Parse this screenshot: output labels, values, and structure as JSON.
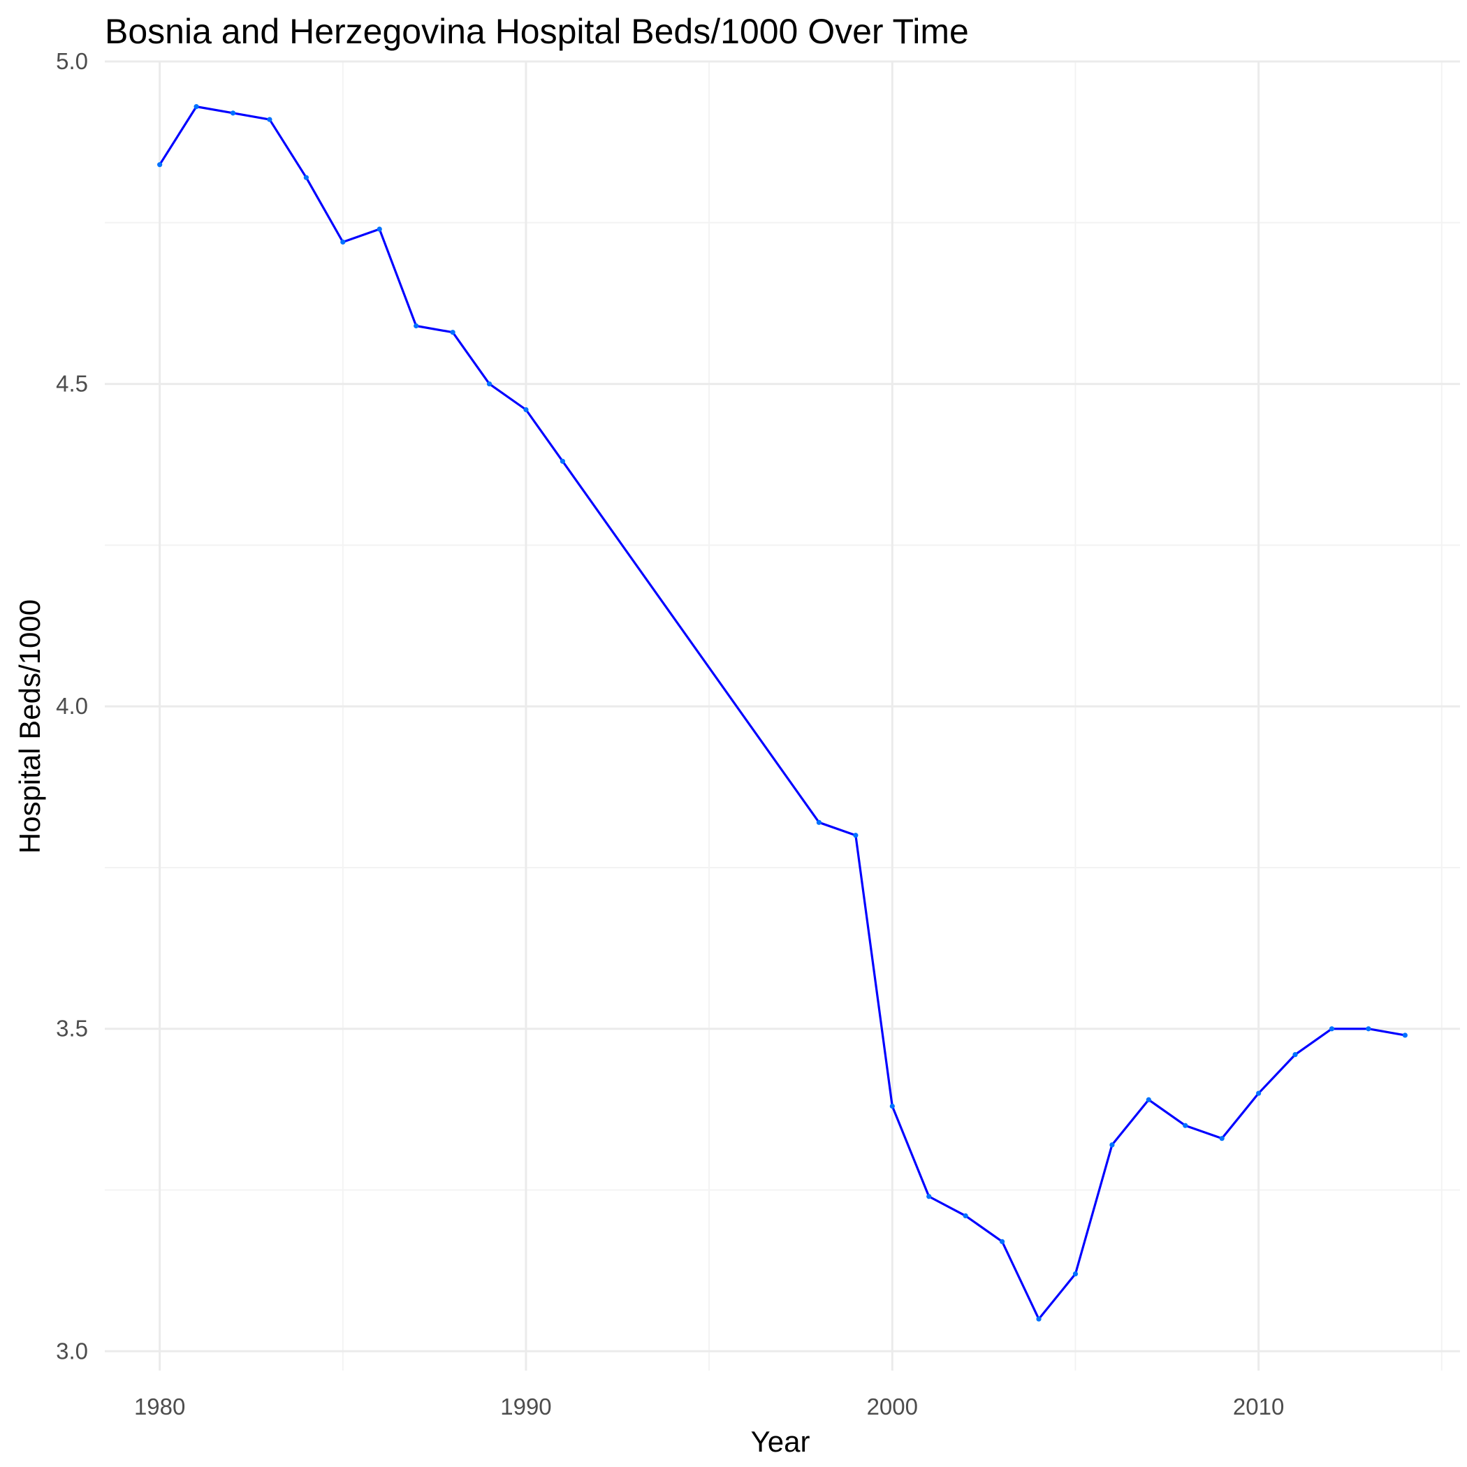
{
  "chart_data": {
    "type": "line",
    "title": "Bosnia and Herzegovina Hospital Beds/1000 Over Time",
    "xlabel": "Year",
    "ylabel": "Hospital Beds/1000",
    "xlim": [
      1978.5,
      2015.5
    ],
    "ylim": [
      2.97,
      5.0
    ],
    "x_ticks": [
      1980,
      1990,
      2000,
      2010
    ],
    "x_minor_ticks": [
      1985,
      1995,
      2005,
      2015
    ],
    "y_ticks": [
      3.0,
      3.5,
      4.0,
      4.5,
      5.0
    ],
    "y_tick_labels": [
      "3.0",
      "3.5",
      "4.0",
      "4.5",
      "5.0"
    ],
    "y_minor_ticks": [
      3.25,
      3.75,
      4.25,
      4.75
    ],
    "grid": true,
    "legend": "none",
    "colors": {
      "line": "#0000ff",
      "points": "#0072ff",
      "grid_major": "#ebebeb",
      "grid_minor": "#f3f3f3"
    },
    "series": [
      {
        "x": [
          1980,
          1981,
          1982,
          1983,
          1984,
          1985,
          1986,
          1987,
          1988,
          1989,
          1990,
          1991,
          1998,
          1999,
          2000,
          2001,
          2002,
          2003,
          2004,
          2005,
          2006,
          2007,
          2008,
          2009,
          2010,
          2011,
          2012,
          2013,
          2014
        ],
        "y": [
          4.84,
          4.93,
          4.92,
          4.91,
          4.82,
          4.72,
          4.74,
          4.59,
          4.58,
          4.5,
          4.46,
          4.38,
          3.82,
          3.8,
          3.38,
          3.24,
          3.21,
          3.17,
          3.05,
          3.12,
          3.32,
          3.39,
          3.35,
          3.33,
          3.4,
          3.46,
          3.5,
          3.5,
          3.49
        ]
      }
    ]
  }
}
